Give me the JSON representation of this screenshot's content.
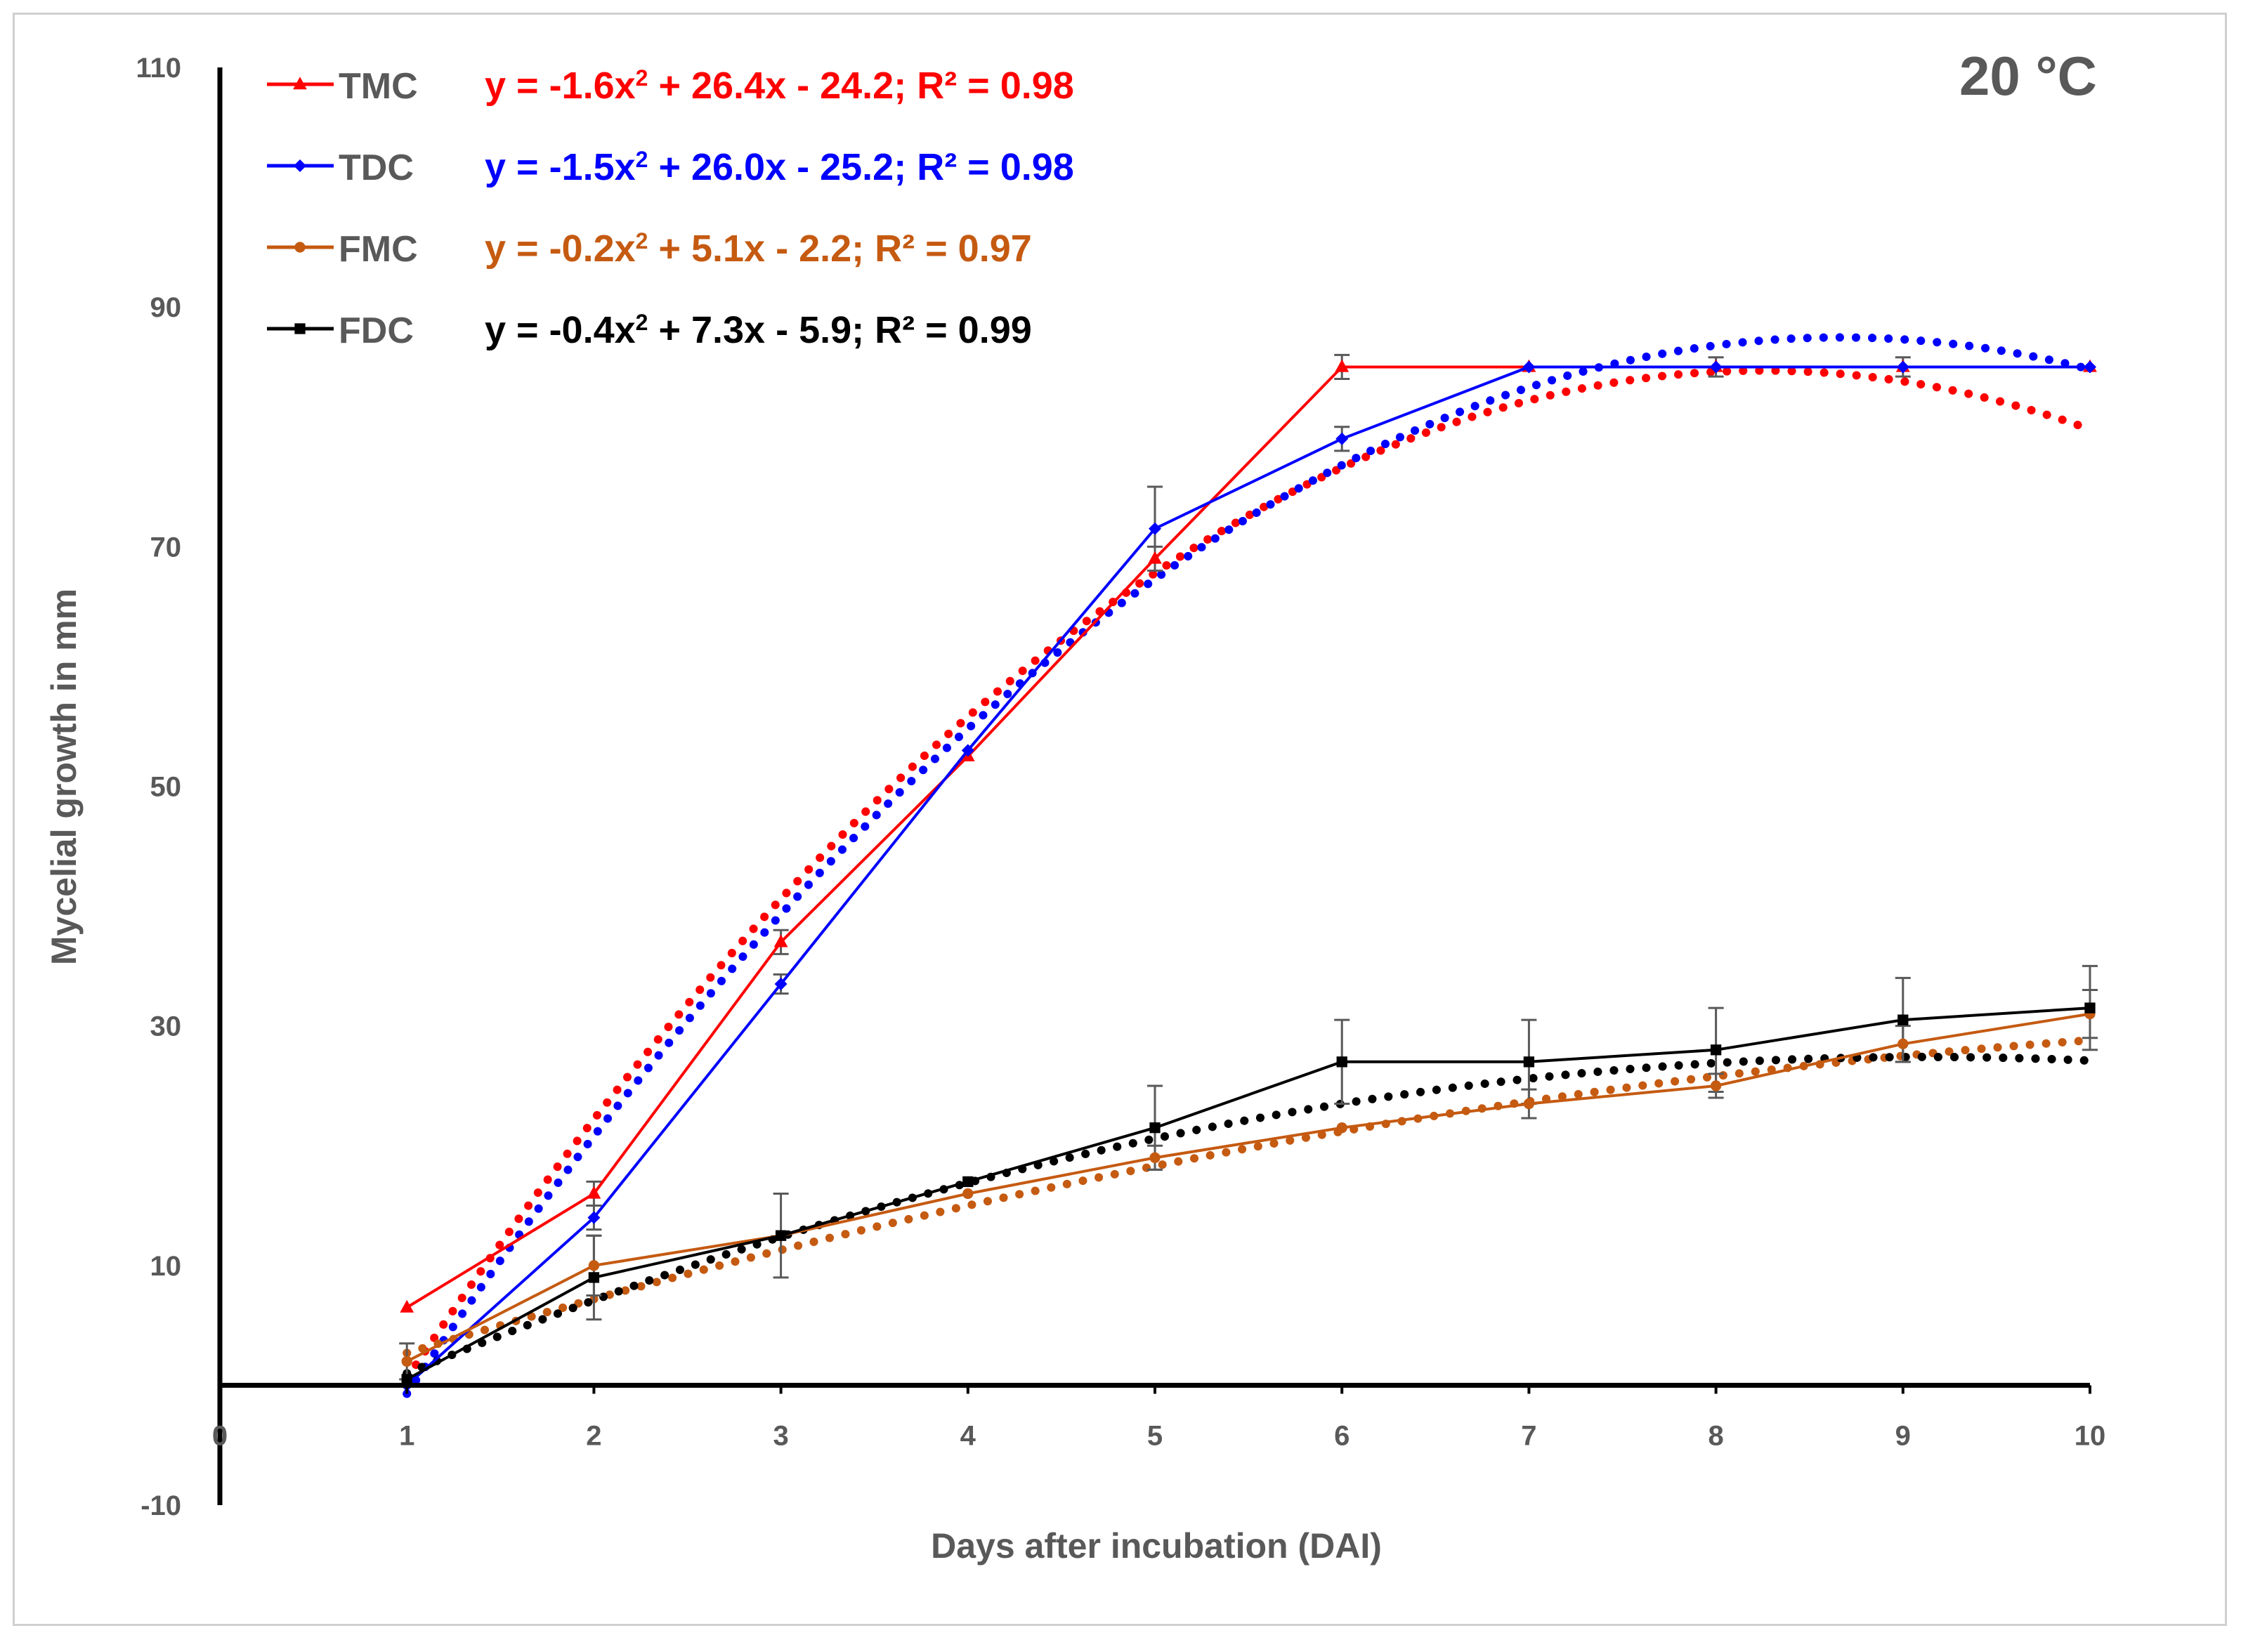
{
  "chart_data": {
    "type": "line",
    "title": "",
    "annotation": "20 °C",
    "xlabel": "Days after incubation (DAI)",
    "ylabel": "Mycelial growth in mm",
    "xlim": [
      0,
      10
    ],
    "ylim": [
      -10,
      110
    ],
    "xticks": [
      "0",
      "1",
      "2",
      "3",
      "4",
      "5",
      "6",
      "7",
      "8",
      "9",
      "10"
    ],
    "yticks": [
      "-10",
      "10",
      "30",
      "50",
      "70",
      "90",
      "110"
    ],
    "x": [
      1,
      2,
      3,
      4,
      5,
      6,
      7,
      8,
      9,
      10
    ],
    "legend_position": "top-left",
    "series": [
      {
        "name": "TMC",
        "color": "#ff0000",
        "marker": "triangle",
        "values": [
          6.5,
          16.0,
          37.0,
          52.5,
          69.0,
          85.0,
          85.0,
          85.0,
          85.0,
          85.0
        ],
        "errors": [
          0,
          1.0,
          1.0,
          0,
          1.0,
          1.0,
          0,
          0,
          0,
          0
        ],
        "trend": {
          "a": -1.6,
          "b": 26.4,
          "c": -24.2
        },
        "equation": {
          "prefix": "y = -1.6x",
          "sup": "2",
          "suffix": " + 26.4x - 24.2; R² = 0.98"
        }
      },
      {
        "name": "TDC",
        "color": "#0000ff",
        "marker": "diamond",
        "values": [
          0.0,
          14.0,
          33.5,
          53.0,
          71.5,
          79.0,
          85.0,
          85.0,
          85.0,
          85.0
        ],
        "errors": [
          0,
          1.0,
          0.8,
          0,
          3.5,
          1.0,
          0,
          0.8,
          0.8,
          0
        ],
        "trend": {
          "a": -1.5,
          "b": 26.0,
          "c": -25.2
        },
        "equation": {
          "prefix": "y = -1.5x",
          "sup": "2",
          "suffix": " + 26.0x - 25.2; R² = 0.98"
        }
      },
      {
        "name": "FMC",
        "color": "#c55a11",
        "marker": "circle",
        "values": [
          2.0,
          10.0,
          12.5,
          16.0,
          19.0,
          21.5,
          23.5,
          25.0,
          28.5,
          31.0
        ],
        "errors": [
          1.5,
          2.5,
          3.5,
          0,
          1.0,
          0,
          1.2,
          1.0,
          1.5,
          2.0
        ],
        "trend": {
          "a": -0.2,
          "b": 5.1,
          "c": -2.2
        },
        "equation": {
          "prefix": "y = -0.2x",
          "sup": "2",
          "suffix": " + 5.1x - 2.2; R² = 0.97"
        }
      },
      {
        "name": "FDC",
        "color": "#000000",
        "marker": "square",
        "values": [
          0.5,
          9.0,
          12.5,
          17.0,
          21.5,
          27.0,
          27.0,
          28.0,
          30.5,
          31.5
        ],
        "errors": [
          0,
          3.5,
          0,
          0,
          3.5,
          3.5,
          3.5,
          3.5,
          3.5,
          3.5
        ],
        "trend": {
          "a": -0.4,
          "b": 7.3,
          "c": -5.9
        },
        "equation": {
          "prefix": "y = -0.4x",
          "sup": "2",
          "suffix": " + 7.3x - 5.9; R² = 0.99"
        }
      }
    ]
  }
}
